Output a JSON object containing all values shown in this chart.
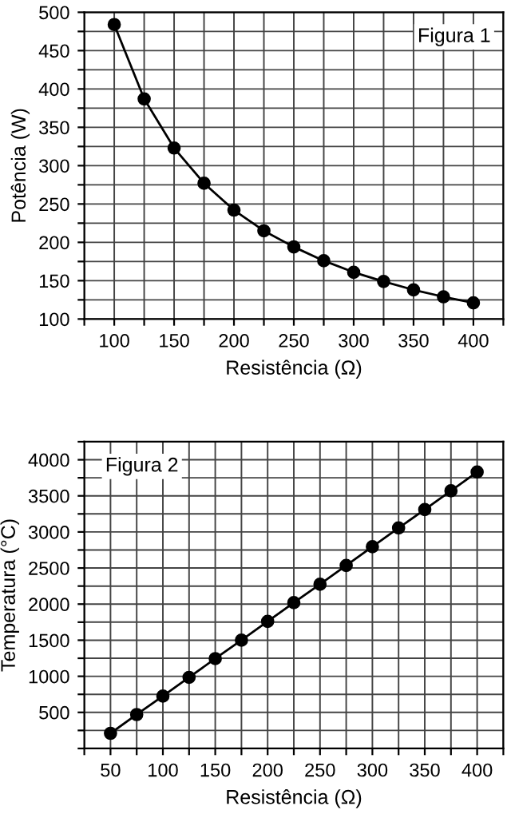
{
  "chart_data": [
    {
      "type": "line",
      "xlabel": "Resistência (Ω)",
      "ylabel": "Potência (W)",
      "annotations": [
        "Figura 1"
      ],
      "x": [
        100,
        125,
        150,
        175,
        200,
        225,
        250,
        275,
        300,
        325,
        350,
        375,
        400
      ],
      "series": [
        {
          "color": "#000000",
          "values": [
            484,
            387,
            323,
            277,
            242,
            215,
            194,
            176,
            161,
            149,
            138,
            129,
            121
          ]
        }
      ],
      "marker": "circle",
      "line_style": "solid",
      "grid": true,
      "xlim": [
        75,
        425
      ],
      "xticks": [
        {
          "value": 75,
          "label": null
        },
        100,
        {
          "value": 125,
          "label": null
        },
        150,
        {
          "value": 175,
          "label": null
        },
        200,
        {
          "value": 225,
          "label": null
        },
        250,
        {
          "value": 275,
          "label": null
        },
        300,
        {
          "value": 325,
          "label": null
        },
        350,
        {
          "value": 375,
          "label": null
        },
        400,
        {
          "value": 425,
          "label": null
        }
      ],
      "ylim": [
        100,
        500
      ],
      "yticks": [
        100,
        {
          "value": 125,
          "label": null
        },
        150,
        {
          "value": 175,
          "label": null
        },
        200,
        {
          "value": 225,
          "label": null
        },
        250,
        {
          "value": 275,
          "label": null
        },
        300,
        {
          "value": 325,
          "label": null
        },
        350,
        {
          "value": 375,
          "label": null
        },
        400,
        {
          "value": 425,
          "label": null
        },
        450,
        {
          "value": 475,
          "label": null
        },
        500
      ]
    },
    {
      "type": "line",
      "xlabel": "Resistência (Ω)",
      "ylabel": "Temperatura (°C)",
      "annotations": [
        "Figura 2"
      ],
      "x": [
        50,
        75,
        100,
        125,
        150,
        175,
        200,
        225,
        250,
        275,
        300,
        325,
        350,
        375,
        400
      ],
      "series": [
        {
          "color": "#000000",
          "values": [
            210,
            470,
            725,
            985,
            1245,
            1500,
            1760,
            2020,
            2275,
            2535,
            2795,
            3055,
            3310,
            3570,
            3830
          ]
        }
      ],
      "marker": "circle",
      "line_style": "solid",
      "grid": true,
      "xlim": [
        25,
        425
      ],
      "xticks": [
        {
          "value": 25,
          "label": null
        },
        50,
        {
          "value": 75,
          "label": null
        },
        100,
        {
          "value": 125,
          "label": null
        },
        150,
        {
          "value": 175,
          "label": null
        },
        200,
        {
          "value": 225,
          "label": null
        },
        250,
        {
          "value": 275,
          "label": null
        },
        300,
        {
          "value": 325,
          "label": null
        },
        350,
        {
          "value": 375,
          "label": null
        },
        400,
        {
          "value": 425,
          "label": null
        }
      ],
      "ylim": [
        0,
        4250
      ],
      "yticks": [
        {
          "value": 0,
          "label": null
        },
        {
          "value": 250,
          "label": null
        },
        500,
        {
          "value": 750,
          "label": null
        },
        1000,
        {
          "value": 1250,
          "label": null
        },
        1500,
        {
          "value": 1750,
          "label": null
        },
        2000,
        {
          "value": 2250,
          "label": null
        },
        2500,
        {
          "value": 2750,
          "label": null
        },
        3000,
        {
          "value": 3250,
          "label": null
        },
        3500,
        {
          "value": 3750,
          "label": null
        },
        4000,
        {
          "value": 4250,
          "label": null
        }
      ]
    }
  ]
}
